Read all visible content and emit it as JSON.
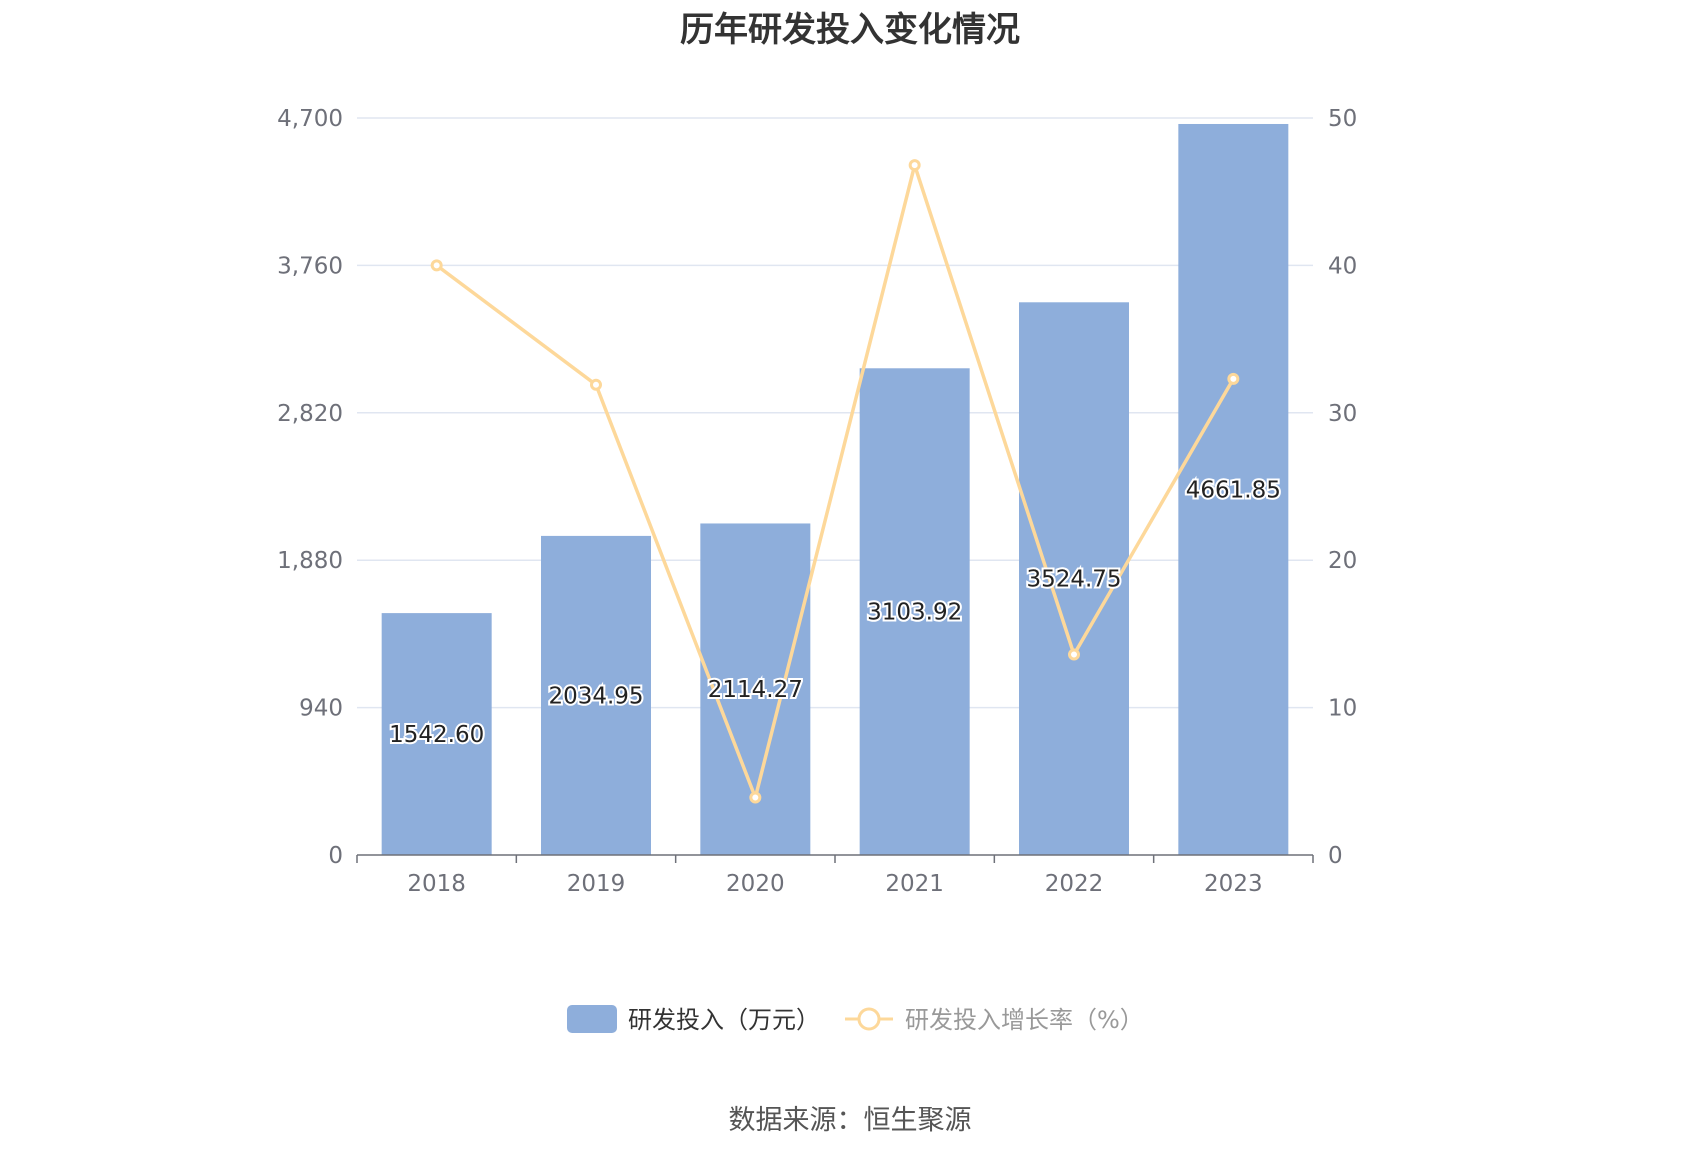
{
  "chart_data": {
    "type": "bar",
    "title": "历年研发投入变化情况",
    "categories": [
      "2018",
      "2019",
      "2020",
      "2021",
      "2022",
      "2023"
    ],
    "series": [
      {
        "name": "研发投入（万元）",
        "type": "bar",
        "axis": "left",
        "values": [
          1542.6,
          2034.95,
          2114.27,
          3103.92,
          3524.75,
          4661.85
        ],
        "labels": [
          "1542.60",
          "2034.95",
          "2114.27",
          "3103.92",
          "3524.75",
          "4661.85"
        ],
        "color": "#8eaedb"
      },
      {
        "name": "研发投入增长率（%）",
        "type": "line",
        "axis": "right",
        "values": [
          40.0,
          31.9,
          3.9,
          46.8,
          13.6,
          32.3
        ],
        "color": "#fdd89a"
      }
    ],
    "y_left": {
      "min": 0,
      "max": 4700,
      "ticks": [
        "0",
        "940",
        "1,880",
        "2,820",
        "3,760",
        "4,700"
      ]
    },
    "y_right": {
      "min": 0,
      "max": 50,
      "ticks": [
        "0",
        "10",
        "20",
        "30",
        "40",
        "50"
      ]
    },
    "grid": true,
    "legend_position": "bottom"
  },
  "source": "数据来源：恒生聚源",
  "colors": {
    "axis": "#6e7079",
    "grid": "#e0e6f1"
  }
}
